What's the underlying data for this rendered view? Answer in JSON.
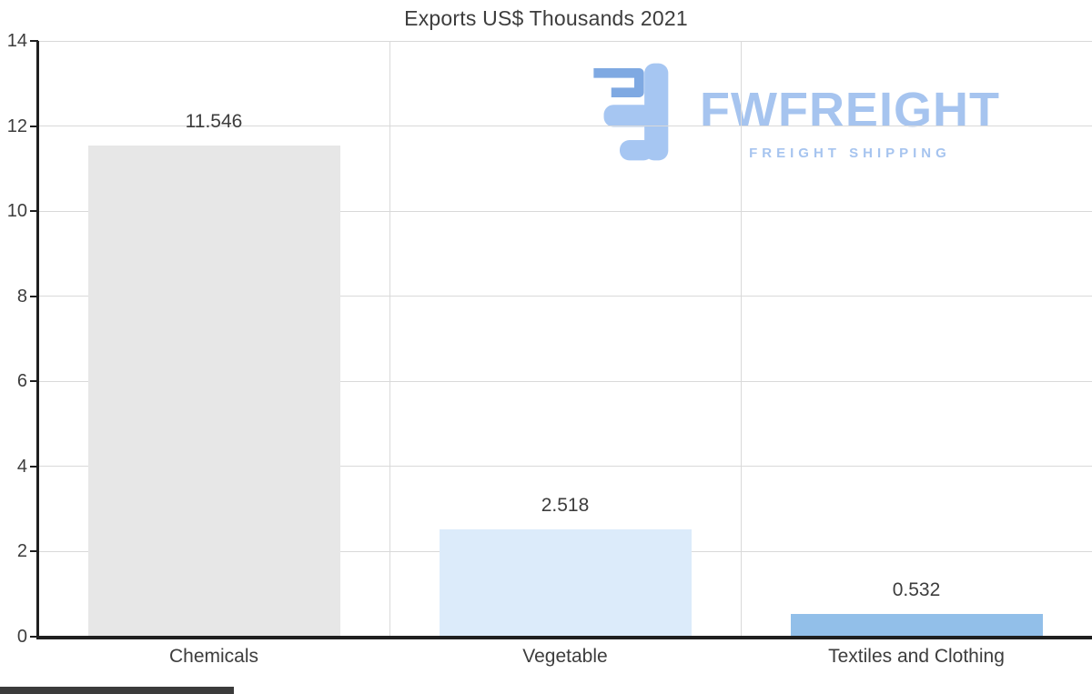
{
  "title": "Exports US$ Thousands 2021",
  "watermark": {
    "brand": "FWFREIGHT",
    "tagline": "FREIGHT SHIPPING",
    "color": "#a6c4ef"
  },
  "chart_data": {
    "type": "bar",
    "title": "Exports US$ Thousands 2021",
    "categories": [
      "Chemicals",
      "Vegetable",
      "Textiles and Clothing"
    ],
    "values": [
      11.546,
      2.518,
      0.532
    ],
    "value_labels": [
      "11.546",
      "2.518",
      "0.532"
    ],
    "bar_colors": [
      "#e7e7e7",
      "#dcebfa",
      "#92bfe9"
    ],
    "xlabel": "",
    "ylabel": "",
    "ylim": [
      0,
      14
    ],
    "yticks": [
      0,
      2,
      4,
      6,
      8,
      10,
      12,
      14
    ],
    "grid": true,
    "legend": false
  },
  "colors": {
    "grid": "#d9d9d9",
    "axis": "#1f1f1f",
    "text": "#3d3d3d",
    "background": "#ffffff"
  }
}
